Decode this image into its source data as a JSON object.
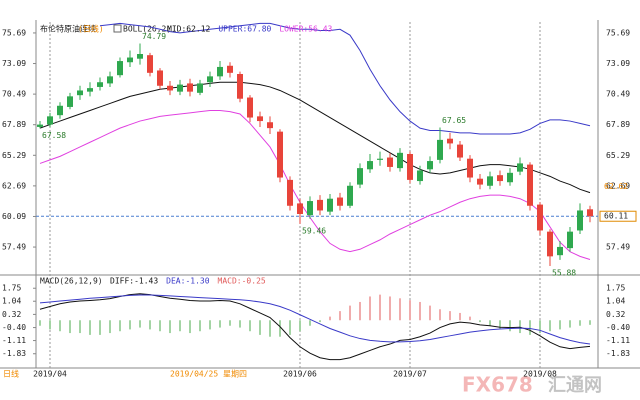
{
  "chart_data": [
    {
      "type": "candlestick",
      "title": "布伦特原油连续",
      "subtitle": "(日线)",
      "indicator": "BOLL(26,2)",
      "categories": [
        null,
        "2019/04",
        null,
        null,
        null,
        null,
        null,
        null,
        null,
        null,
        null,
        null,
        null,
        null,
        null,
        null,
        null,
        null,
        null,
        null,
        null,
        null,
        null,
        null,
        null,
        null,
        "2019/06",
        null,
        null,
        null,
        null,
        null,
        null,
        null,
        null,
        null,
        null,
        "2019/07",
        null,
        null,
        null,
        null,
        null,
        null,
        null,
        null,
        null,
        null,
        null,
        null,
        "2019/08",
        null,
        null,
        null,
        null,
        null
      ],
      "open": [
        67.7,
        67.9,
        68.7,
        69.4,
        70.4,
        70.7,
        71.1,
        71.4,
        72.1,
        73.2,
        73.5,
        73.8,
        72.5,
        71.2,
        70.7,
        71.4,
        70.6,
        71.5,
        72.0,
        72.9,
        72.2,
        70.2,
        68.6,
        68.1,
        67.3,
        63.2,
        61.2,
        60.2,
        61.5,
        60.5,
        61.7,
        61.0,
        62.8,
        64.1,
        64.9,
        65.1,
        64.2,
        65.4,
        63.1,
        64.1,
        64.9,
        66.7,
        66.2,
        65.0,
        63.3,
        62.7,
        63.6,
        63.0,
        63.9,
        64.5,
        61.1,
        58.8,
        56.8,
        57.4,
        58.9,
        60.7
      ],
      "high": [
        68.2,
        68.9,
        69.8,
        70.6,
        71.2,
        71.5,
        71.9,
        72.4,
        73.6,
        74.2,
        74.79,
        74.0,
        72.7,
        71.6,
        71.7,
        71.8,
        71.7,
        72.4,
        73.3,
        73.2,
        72.4,
        70.4,
        69.0,
        68.6,
        67.5,
        63.5,
        61.6,
        61.8,
        61.9,
        62.0,
        62.1,
        63.0,
        64.6,
        65.4,
        65.6,
        65.5,
        65.9,
        65.6,
        64.4,
        65.2,
        67.65,
        67.2,
        66.5,
        65.3,
        63.7,
        63.9,
        64.0,
        64.2,
        65.1,
        64.7,
        61.3,
        59.0,
        58.0,
        59.2,
        61.2,
        61.0
      ],
      "low": [
        67.58,
        67.7,
        68.4,
        69.2,
        70.0,
        70.3,
        70.8,
        71.1,
        71.9,
        72.8,
        73.0,
        72.0,
        70.9,
        70.4,
        70.4,
        70.3,
        70.4,
        71.1,
        71.7,
        71.9,
        69.8,
        68.1,
        67.7,
        67.1,
        63.0,
        60.6,
        59.46,
        59.9,
        60.2,
        60.2,
        60.6,
        60.8,
        62.5,
        63.8,
        64.4,
        63.9,
        63.9,
        62.9,
        62.8,
        63.8,
        64.6,
        65.8,
        64.8,
        63.0,
        62.4,
        62.4,
        62.7,
        62.7,
        63.6,
        60.6,
        58.5,
        55.88,
        56.4,
        57.1,
        58.6,
        59.6
      ],
      "close": [
        67.9,
        68.6,
        69.5,
        70.3,
        70.8,
        71.0,
        71.5,
        72.0,
        73.3,
        73.6,
        73.9,
        72.3,
        71.2,
        70.8,
        71.3,
        70.7,
        71.4,
        72.0,
        72.8,
        72.3,
        70.1,
        68.5,
        68.2,
        67.6,
        63.4,
        61.0,
        60.3,
        61.4,
        60.6,
        61.6,
        61.0,
        62.7,
        64.2,
        64.8,
        65.0,
        64.3,
        65.5,
        63.2,
        64.0,
        64.8,
        66.6,
        66.3,
        65.1,
        63.4,
        62.8,
        63.5,
        63.1,
        63.8,
        64.6,
        61.0,
        58.9,
        56.7,
        57.5,
        58.8,
        60.6,
        60.11
      ],
      "up_color": "#2fa84f",
      "down_color": "#e8443a",
      "series": [
        {
          "name": "MID:62.12",
          "color": "#111111",
          "values": [
            67.6,
            67.9,
            68.2,
            68.5,
            68.8,
            69.1,
            69.4,
            69.7,
            70.0,
            70.3,
            70.5,
            70.7,
            70.9,
            71.0,
            71.1,
            71.2,
            71.3,
            71.4,
            71.5,
            71.5,
            71.5,
            71.4,
            71.3,
            71.1,
            70.8,
            70.4,
            70.0,
            69.5,
            69.0,
            68.5,
            68.0,
            67.5,
            67.0,
            66.5,
            66.0,
            65.5,
            65.0,
            64.5,
            64.1,
            63.8,
            63.7,
            63.8,
            64.0,
            64.2,
            64.4,
            64.5,
            64.5,
            64.4,
            64.3,
            64.1,
            63.8,
            63.5,
            63.1,
            62.8,
            62.4,
            62.12
          ]
        },
        {
          "name": "UPPER:67.80",
          "color": "#3a3ac8",
          "values": [
            null,
            null,
            null,
            null,
            null,
            null,
            76.3,
            76.4,
            76.5,
            76.4,
            76.3,
            76.2,
            76.0,
            75.8,
            75.7,
            75.8,
            75.9,
            76.0,
            76.1,
            76.2,
            76.3,
            76.4,
            76.5,
            76.5,
            76.3,
            76.1,
            76.0,
            76.0,
            75.9,
            75.9,
            76.0,
            75.5,
            74.2,
            72.6,
            71.2,
            70.0,
            69.0,
            68.2,
            67.6,
            67.4,
            67.4,
            67.3,
            67.2,
            67.2,
            67.1,
            67.1,
            67.1,
            67.1,
            67.2,
            67.5,
            68.0,
            68.3,
            68.3,
            68.2,
            68.0,
            67.8
          ]
        },
        {
          "name": "LOWER:56.43",
          "color": "#e040e0",
          "values": [
            64.6,
            64.9,
            65.2,
            65.6,
            66.0,
            66.4,
            66.8,
            67.2,
            67.6,
            67.9,
            68.2,
            68.4,
            68.6,
            68.7,
            68.8,
            68.9,
            69.0,
            69.1,
            69.1,
            69.0,
            68.8,
            68.0,
            67.0,
            66.0,
            64.5,
            62.8,
            61.3,
            60.0,
            58.8,
            57.8,
            57.3,
            57.1,
            57.3,
            57.7,
            58.1,
            58.6,
            59.0,
            59.4,
            59.8,
            60.2,
            60.5,
            60.9,
            61.3,
            61.6,
            61.8,
            61.9,
            61.9,
            61.8,
            61.6,
            61.2,
            60.5,
            59.2,
            57.9,
            57.1,
            56.7,
            56.43
          ]
        }
      ],
      "ylim": [
        55.54,
        76.62
      ],
      "yticks": [
        75.69,
        73.09,
        70.49,
        67.89,
        65.29,
        62.69,
        60.09,
        57.49
      ],
      "price_tag": 62.62,
      "price_tag_color": "#f08a00",
      "last_line_color": "#4a7fd0",
      "cursor_label": "2019/04/25 星期四",
      "period_button": "日线",
      "watermark": [
        "FX678",
        "汇通网"
      ]
    },
    {
      "type": "macd",
      "indicator": "MACD(26,12,9)",
      "series": [
        {
          "name": "DIFF:-1.43",
          "color": "#111111",
          "values": [
            0.6,
            0.75,
            0.9,
            1.0,
            1.05,
            1.08,
            1.12,
            1.18,
            1.3,
            1.4,
            1.45,
            1.4,
            1.3,
            1.2,
            1.15,
            1.08,
            1.05,
            1.05,
            1.08,
            1.05,
            0.9,
            0.65,
            0.4,
            0.15,
            -0.35,
            -0.95,
            -1.45,
            -1.8,
            -2.05,
            -2.15,
            -2.15,
            -2.05,
            -1.85,
            -1.65,
            -1.45,
            -1.3,
            -1.1,
            -1.05,
            -0.9,
            -0.7,
            -0.4,
            -0.2,
            -0.1,
            -0.15,
            -0.25,
            -0.3,
            -0.38,
            -0.4,
            -0.38,
            -0.55,
            -0.85,
            -1.2,
            -1.45,
            -1.55,
            -1.48,
            -1.43
          ]
        },
        {
          "name": "DEA:-1.30",
          "color": "#3a3ac8",
          "values": [
            0.95,
            1.0,
            1.05,
            1.1,
            1.15,
            1.2,
            1.24,
            1.28,
            1.32,
            1.36,
            1.38,
            1.38,
            1.36,
            1.33,
            1.3,
            1.27,
            1.24,
            1.21,
            1.18,
            1.15,
            1.12,
            1.07,
            1.0,
            0.9,
            0.75,
            0.55,
            0.3,
            0.05,
            -0.2,
            -0.45,
            -0.65,
            -0.85,
            -1.0,
            -1.1,
            -1.15,
            -1.18,
            -1.18,
            -1.16,
            -1.12,
            -1.05,
            -0.95,
            -0.85,
            -0.75,
            -0.65,
            -0.58,
            -0.52,
            -0.48,
            -0.45,
            -0.43,
            -0.45,
            -0.55,
            -0.75,
            -0.95,
            -1.1,
            -1.22,
            -1.3
          ]
        }
      ],
      "histogram": {
        "name": "MACD:-0.25",
        "up_color": "#e05a5a",
        "down_color": "#4aa84a",
        "values": [
          -0.3,
          -0.5,
          -0.6,
          -0.7,
          -0.7,
          -0.8,
          -0.8,
          -0.7,
          -0.6,
          -0.5,
          -0.4,
          -0.5,
          -0.6,
          -0.7,
          -0.6,
          -0.7,
          -0.6,
          -0.5,
          -0.4,
          -0.3,
          -0.4,
          -0.6,
          -0.8,
          -0.9,
          -0.9,
          -0.8,
          -0.6,
          -0.3,
          -0.1,
          0.2,
          0.5,
          0.8,
          1.0,
          1.3,
          1.4,
          1.3,
          1.2,
          1.1,
          1.0,
          0.8,
          0.6,
          0.5,
          0.4,
          0.2,
          -0.1,
          -0.3,
          -0.5,
          -0.6,
          -0.7,
          -0.8,
          -0.7,
          -0.6,
          -0.5,
          -0.4,
          -0.3,
          -0.25
        ]
      },
      "ylim": [
        -2.5,
        2.2
      ],
      "yticks": [
        1.75,
        1.04,
        0.32,
        {
          "value": -0.4,
          "label": "-0.40"
        },
        -1.11,
        -1.83
      ]
    }
  ]
}
